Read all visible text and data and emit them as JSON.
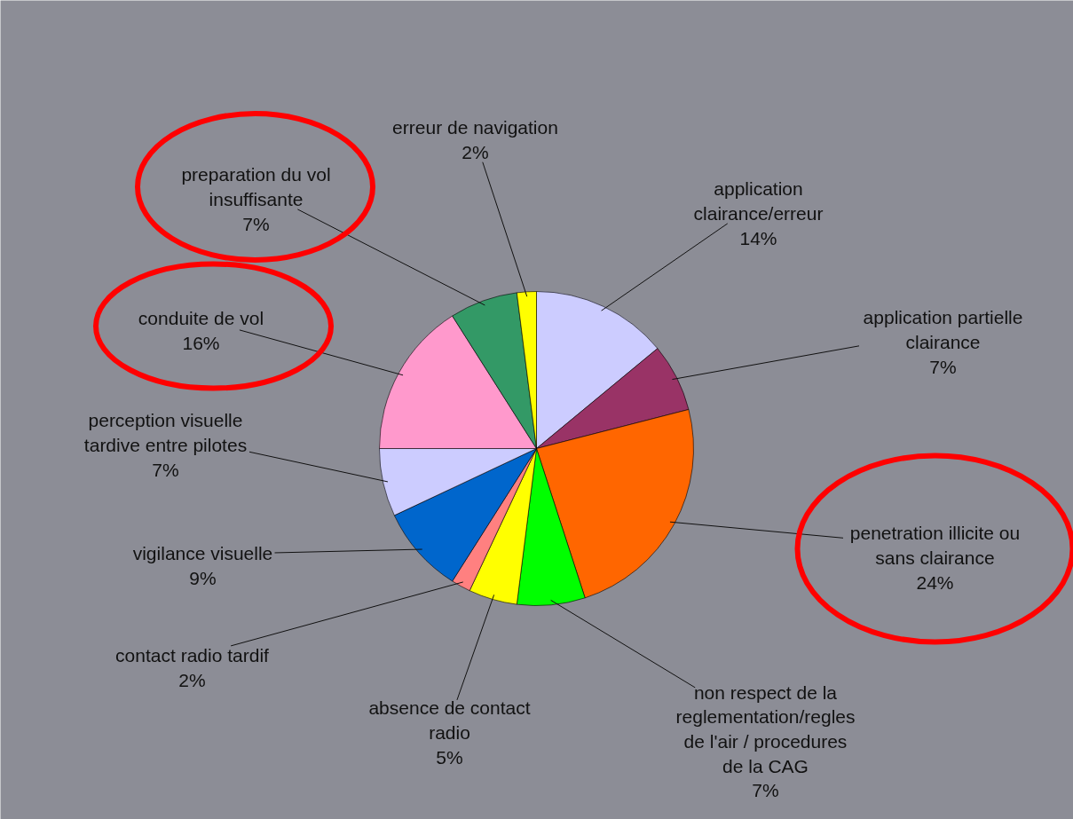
{
  "chart_data": {
    "type": "pie",
    "categories": [
      "application\nclairance/erreur",
      "application partielle\nclairance",
      "penetration illicite ou\nsans clairance",
      "non respect de la\nreglementation/regles\nde l'air / procedures\nde la CAG",
      "absence de contact\nradio",
      "contact radio tardif",
      "vigilance visuelle",
      "perception visuelle\ntardive entre pilotes",
      "conduite de vol",
      "preparation du vol\ninsuffisante",
      "erreur de navigation"
    ],
    "values": [
      14,
      7,
      24,
      7,
      5,
      2,
      9,
      7,
      16,
      7,
      2
    ],
    "value_labels": [
      "14%",
      "7%",
      "24%",
      "7%",
      "5%",
      "2%",
      "9%",
      "7%",
      "16%",
      "7%",
      "2%"
    ],
    "colors": [
      "#ccccff",
      "#993366",
      "#ff6600",
      "#00ff00",
      "#ffff00",
      "#ff8080",
      "#0066cc",
      "#ccccff",
      "#ff99cc",
      "#339966",
      "#ffff00"
    ]
  }
}
